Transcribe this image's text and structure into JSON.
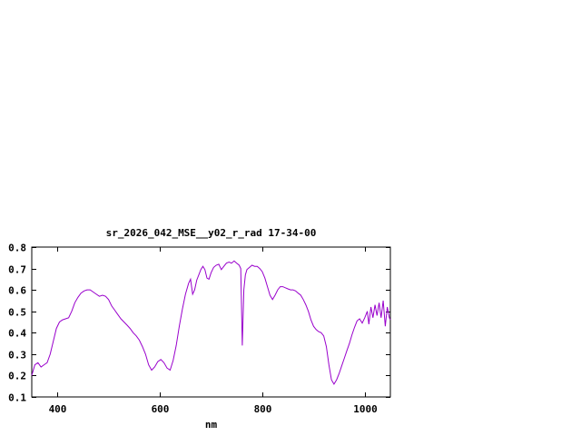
{
  "chart_data": {
    "type": "line",
    "title": "sr_2026_042_MSE__y02_r_rad 17-34-00",
    "xlabel": "nm",
    "ylabel": "",
    "xlim": [
      350,
      1050
    ],
    "ylim": [
      0.1,
      0.8
    ],
    "xticks": [
      400,
      600,
      800,
      1000
    ],
    "yticks": [
      0.1,
      0.2,
      0.3,
      0.4,
      0.5,
      0.6,
      0.7,
      0.8
    ],
    "grid": false,
    "legend": "none",
    "line_color": "#9900cc",
    "axis_color": "#000000",
    "background_color": "#ffffff",
    "series": [
      {
        "points": [
          [
            350,
            0.2
          ],
          [
            356,
            0.25
          ],
          [
            362,
            0.26
          ],
          [
            368,
            0.24
          ],
          [
            374,
            0.25
          ],
          [
            380,
            0.26
          ],
          [
            386,
            0.3
          ],
          [
            392,
            0.36
          ],
          [
            398,
            0.42
          ],
          [
            404,
            0.45
          ],
          [
            410,
            0.46
          ],
          [
            416,
            0.465
          ],
          [
            422,
            0.47
          ],
          [
            428,
            0.5
          ],
          [
            434,
            0.54
          ],
          [
            440,
            0.565
          ],
          [
            446,
            0.585
          ],
          [
            452,
            0.595
          ],
          [
            458,
            0.6
          ],
          [
            464,
            0.6
          ],
          [
            470,
            0.59
          ],
          [
            476,
            0.58
          ],
          [
            482,
            0.57
          ],
          [
            488,
            0.575
          ],
          [
            494,
            0.57
          ],
          [
            500,
            0.555
          ],
          [
            506,
            0.525
          ],
          [
            512,
            0.505
          ],
          [
            518,
            0.485
          ],
          [
            524,
            0.465
          ],
          [
            530,
            0.45
          ],
          [
            536,
            0.435
          ],
          [
            542,
            0.42
          ],
          [
            548,
            0.4
          ],
          [
            554,
            0.385
          ],
          [
            560,
            0.365
          ],
          [
            566,
            0.335
          ],
          [
            572,
            0.3
          ],
          [
            578,
            0.25
          ],
          [
            584,
            0.225
          ],
          [
            590,
            0.24
          ],
          [
            596,
            0.265
          ],
          [
            602,
            0.275
          ],
          [
            608,
            0.26
          ],
          [
            614,
            0.235
          ],
          [
            620,
            0.225
          ],
          [
            626,
            0.27
          ],
          [
            632,
            0.34
          ],
          [
            638,
            0.43
          ],
          [
            644,
            0.51
          ],
          [
            650,
            0.58
          ],
          [
            656,
            0.63
          ],
          [
            660,
            0.65
          ],
          [
            664,
            0.58
          ],
          [
            668,
            0.6
          ],
          [
            672,
            0.645
          ],
          [
            676,
            0.67
          ],
          [
            680,
            0.695
          ],
          [
            684,
            0.71
          ],
          [
            688,
            0.695
          ],
          [
            692,
            0.655
          ],
          [
            696,
            0.65
          ],
          [
            700,
            0.68
          ],
          [
            705,
            0.705
          ],
          [
            710,
            0.715
          ],
          [
            715,
            0.72
          ],
          [
            720,
            0.695
          ],
          [
            725,
            0.71
          ],
          [
            730,
            0.725
          ],
          [
            735,
            0.73
          ],
          [
            740,
            0.725
          ],
          [
            745,
            0.735
          ],
          [
            750,
            0.725
          ],
          [
            755,
            0.715
          ],
          [
            758,
            0.7
          ],
          [
            761,
            0.34
          ],
          [
            764,
            0.6
          ],
          [
            767,
            0.67
          ],
          [
            770,
            0.695
          ],
          [
            775,
            0.705
          ],
          [
            780,
            0.715
          ],
          [
            785,
            0.71
          ],
          [
            790,
            0.71
          ],
          [
            795,
            0.7
          ],
          [
            800,
            0.685
          ],
          [
            805,
            0.655
          ],
          [
            810,
            0.615
          ],
          [
            815,
            0.575
          ],
          [
            820,
            0.555
          ],
          [
            825,
            0.575
          ],
          [
            830,
            0.6
          ],
          [
            835,
            0.615
          ],
          [
            840,
            0.615
          ],
          [
            845,
            0.61
          ],
          [
            850,
            0.605
          ],
          [
            855,
            0.6
          ],
          [
            860,
            0.6
          ],
          [
            865,
            0.595
          ],
          [
            870,
            0.585
          ],
          [
            875,
            0.575
          ],
          [
            880,
            0.555
          ],
          [
            885,
            0.53
          ],
          [
            890,
            0.5
          ],
          [
            895,
            0.46
          ],
          [
            900,
            0.43
          ],
          [
            905,
            0.415
          ],
          [
            910,
            0.405
          ],
          [
            915,
            0.4
          ],
          [
            920,
            0.385
          ],
          [
            925,
            0.335
          ],
          [
            930,
            0.25
          ],
          [
            935,
            0.18
          ],
          [
            940,
            0.16
          ],
          [
            945,
            0.18
          ],
          [
            950,
            0.21
          ],
          [
            955,
            0.245
          ],
          [
            960,
            0.28
          ],
          [
            965,
            0.315
          ],
          [
            970,
            0.35
          ],
          [
            975,
            0.39
          ],
          [
            980,
            0.425
          ],
          [
            985,
            0.455
          ],
          [
            990,
            0.465
          ],
          [
            995,
            0.445
          ],
          [
            1000,
            0.47
          ],
          [
            1005,
            0.5
          ],
          [
            1008,
            0.44
          ],
          [
            1012,
            0.52
          ],
          [
            1016,
            0.47
          ],
          [
            1020,
            0.53
          ],
          [
            1024,
            0.48
          ],
          [
            1028,
            0.54
          ],
          [
            1032,
            0.47
          ],
          [
            1036,
            0.55
          ],
          [
            1040,
            0.43
          ],
          [
            1044,
            0.52
          ],
          [
            1048,
            0.47
          ],
          [
            1050,
            0.46
          ]
        ]
      }
    ]
  }
}
